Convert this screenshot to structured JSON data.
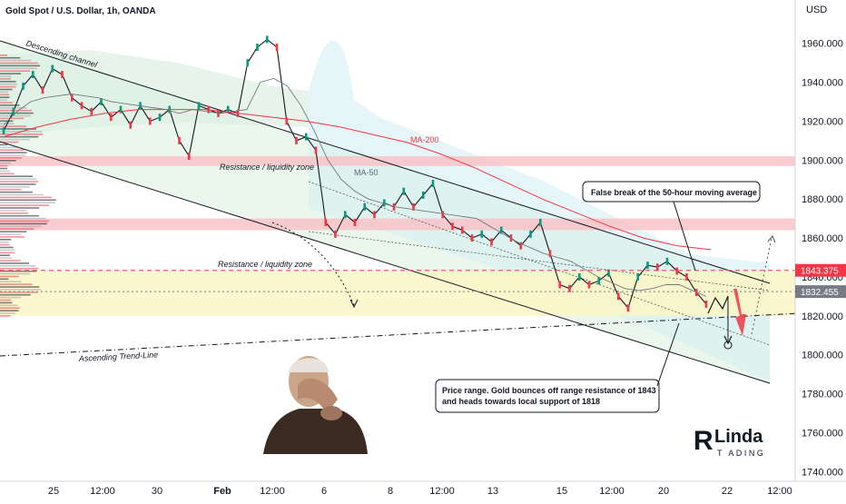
{
  "header": {
    "title": "Gold Spot / U.S. Dollar, 1h, OANDA",
    "currency": "USD"
  },
  "chart_data": {
    "type": "line",
    "title": "Gold Spot / U.S. Dollar, 1h, OANDA",
    "unit": "USD",
    "ylim": [
      1735,
      1972
    ],
    "y_ticks": [
      1740,
      1760,
      1780,
      1800,
      1820,
      1840,
      1860,
      1880,
      1900,
      1920,
      1940,
      1960
    ],
    "y_tick_labels": [
      "1740.000",
      "1760.000",
      "1780.000",
      "1800.000",
      "1820.000",
      "1840.000",
      "1860.000",
      "1880.000",
      "1900.000",
      "1920.000",
      "1940.000",
      "1960.000"
    ],
    "x_ticks": [
      "25",
      "12:00",
      "30",
      "Feb",
      "12:00",
      "6",
      "8",
      "12:00",
      "13",
      "15",
      "12:00",
      "20",
      "22",
      "12:00"
    ],
    "bold_x_ticks": [
      "Feb"
    ],
    "series": [
      {
        "name": "",
        "values": [
          1915,
          1925,
          1938,
          1944,
          1936,
          1947,
          1944,
          1932,
          1928,
          1925,
          1930,
          1922,
          1926,
          1918,
          1928,
          1920,
          1922,
          1926,
          1910,
          1902,
          1928,
          1926,
          1924,
          1926,
          1924,
          1950,
          1958,
          1962,
          1958,
          1920,
          1910,
          1912,
          1905,
          1868,
          1862,
          1872,
          1868,
          1876,
          1872,
          1878,
          1876,
          1884,
          1876,
          1882,
          1888,
          1872,
          1866,
          1864,
          1860,
          1862,
          1858,
          1864,
          1860,
          1856,
          1862,
          1868,
          1852,
          1836,
          1834,
          1840,
          1836,
          1838,
          1842,
          1830,
          1824,
          1840,
          1846,
          1845,
          1848,
          1843,
          1840,
          1832,
          1826
        ]
      },
      {
        "name": "MA-50",
        "values": [
          1918,
          1925,
          1930,
          1932,
          1933,
          1934,
          1933,
          1932,
          1930,
          1929,
          1928,
          1927,
          1926,
          1924,
          1926,
          1925,
          1924,
          1925,
          1926,
          1940,
          1942,
          1938,
          1928,
          1915,
          1900,
          1890,
          1884,
          1880,
          1878,
          1876,
          1875,
          1874,
          1873,
          1872,
          1871,
          1870,
          1866,
          1862,
          1858,
          1855,
          1852,
          1850,
          1848,
          1844,
          1840,
          1837,
          1834,
          1833,
          1834,
          1836,
          1836,
          1833,
          1830
        ]
      },
      {
        "name": "MA-200",
        "values": [
          1912,
          1917,
          1921,
          1924,
          1926,
          1926,
          1926,
          1924,
          1922,
          1920,
          1917,
          1913,
          1909,
          1903,
          1896,
          1888,
          1880,
          1873,
          1866,
          1860,
          1856,
          1854
        ]
      }
    ],
    "levels": [
      {
        "label": "1843.375",
        "value": 1843.375,
        "color": "#f23645"
      },
      {
        "label": "1832.455",
        "value": 1832.455,
        "color": "#787b86"
      }
    ],
    "zones": [
      {
        "label": "Resistance / liquidity zone",
        "from": 1897,
        "to": 1902,
        "color": "#f8c3c8"
      },
      {
        "label": "Resistance / liquidity zone",
        "from": 1864,
        "to": 1870,
        "color": "#f8c3c8"
      },
      {
        "label": "",
        "from": 1820,
        "to": 1843,
        "color": "#fbf6c5"
      }
    ],
    "annotations": {
      "descending_channel": "Descending channel",
      "ascending_trendline": "Ascending Trend-Line",
      "ma200": "MA-200",
      "ma50": "MA-50",
      "resistance_zone_1": "Resistance / liquidity zone",
      "resistance_zone_2": "Resistance / liquidity zone",
      "false_break": "False break of the 50-hour moving average",
      "price_range_line1": "Price range. Gold bounces off range resistance of 1843",
      "price_range_line2": "and heads towards local support of 1818"
    },
    "grid": false,
    "legend": "none"
  },
  "branding": {
    "logo_initial": "R",
    "logo_name": "Linda",
    "logo_sub": "T  ADING"
  }
}
